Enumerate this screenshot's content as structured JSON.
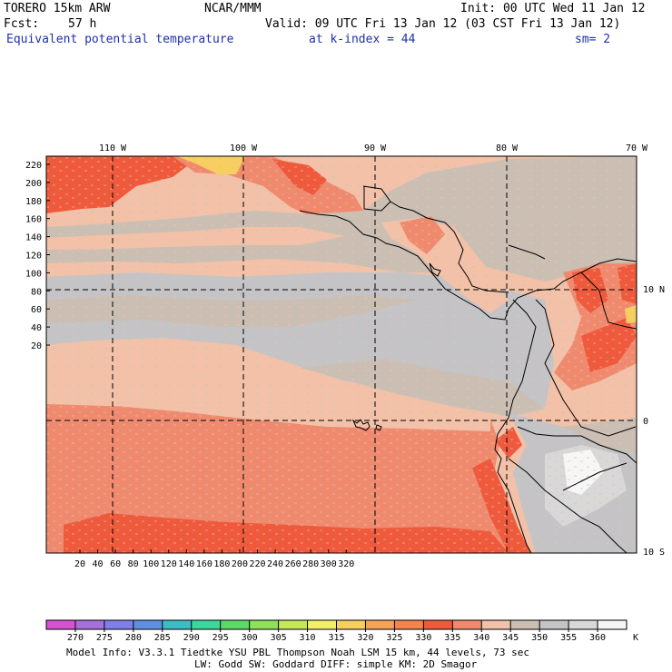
{
  "header": {
    "model": "TORERO  15km ARW",
    "org": "NCAR/MMM",
    "init": "Init: 00 UTC Wed 11 Jan 12",
    "fcst_label": "Fcst:",
    "fcst_value": "57 h",
    "valid": "Valid: 09 UTC Fri 13 Jan 12 (03 CST Fri 13 Jan 12)",
    "field": "Equivalent potential temperature",
    "level": "at k-index =  44",
    "smooth": "sm= 2"
  },
  "map": {
    "lon_labels": [
      "110 W",
      "100 W",
      "90 W",
      "80 W",
      "70 W"
    ],
    "lat_labels": [
      "10 N",
      "0",
      "10 S"
    ],
    "y_ticks": [
      "220",
      "200",
      "180",
      "160",
      "140",
      "120",
      "100",
      "80",
      "60",
      "40",
      "20"
    ],
    "x_ticks": [
      "20",
      "40",
      "60",
      "80",
      "100",
      "120",
      "140",
      "160",
      "180",
      "200",
      "220",
      "240",
      "260",
      "280",
      "300",
      "320"
    ]
  },
  "colorbar": {
    "labels": [
      "270",
      "275",
      "280",
      "285",
      "290",
      "295",
      "300",
      "305",
      "310",
      "315",
      "320",
      "325",
      "330",
      "335",
      "340",
      "345",
      "350",
      "355",
      "360"
    ],
    "unit": "K",
    "colors": [
      "#d653d0",
      "#a571d8",
      "#7f80e6",
      "#5f90e0",
      "#3dbcc6",
      "#3dd69e",
      "#5cd96a",
      "#8fe05a",
      "#c5e85a",
      "#f2ef6a",
      "#f7cf5e",
      "#f5a35a",
      "#f2844e",
      "#ef5a3c",
      "#f08a6e",
      "#f2c1a8",
      "#cbbfb4",
      "#c4c4c6",
      "#d8d8d8",
      "#f6f6f6"
    ]
  },
  "footer": {
    "line1": "Model Info: V3.3.1    Tiedtke YSU PBL  Thompson     Noah LSM  15 km,   44 levels,   73 sec",
    "line2": "LW: Godd SW: Goddard DIFF: simple KM: 2D Smagor"
  }
}
